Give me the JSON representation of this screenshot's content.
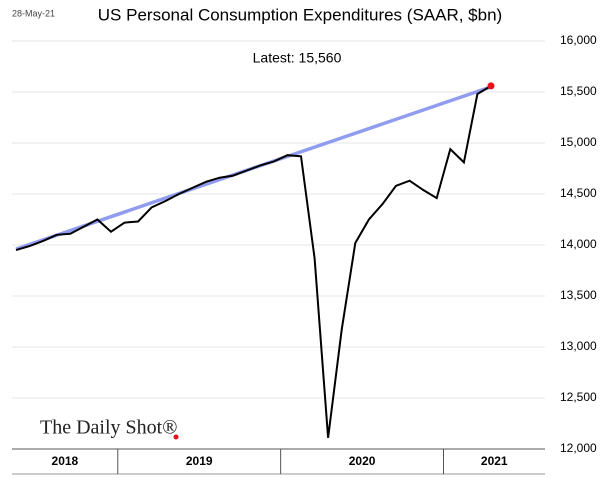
{
  "chart_data": {
    "type": "line",
    "title": "US Personal Consumption Expenditures (SAAR, $bn)",
    "date": "28-May-21",
    "annotation": "Latest:  15,560",
    "watermark": "The Daily Shot®",
    "categories": [
      null,
      null,
      null,
      null,
      null,
      null,
      null,
      null,
      null,
      null,
      null,
      null,
      null,
      null,
      null,
      null,
      null,
      null,
      null,
      null,
      null,
      null,
      null,
      null,
      null,
      null,
      null,
      null,
      null,
      null,
      null,
      null,
      null,
      null,
      null,
      null
    ],
    "x_groups": [
      {
        "label": "2018",
        "count": 8
      },
      {
        "label": "2019",
        "count": 12
      },
      {
        "label": "2020",
        "count": 12
      },
      {
        "label": "2021",
        "count": 4
      }
    ],
    "series": [
      {
        "name": "PCE",
        "color": "#000000",
        "values": [
          13950,
          13990,
          14040,
          14100,
          14110,
          14180,
          14250,
          14130,
          14220,
          14230,
          14370,
          14430,
          14500,
          14560,
          14620,
          14660,
          14680,
          14730,
          14780,
          14820,
          14880,
          14870,
          13870,
          12110,
          13170,
          14020,
          14250,
          14400,
          14580,
          14630,
          14540,
          14460,
          14940,
          14810,
          15480,
          15560
        ]
      },
      {
        "name": "Trend",
        "color": "#8f9cf0",
        "values": [
          13960,
          null,
          null,
          null,
          null,
          null,
          null,
          null,
          null,
          null,
          null,
          null,
          null,
          null,
          null,
          null,
          null,
          null,
          null,
          null,
          null,
          null,
          null,
          null,
          null,
          null,
          null,
          null,
          null,
          null,
          null,
          null,
          null,
          null,
          null,
          15550
        ]
      }
    ],
    "latest_color": "#e8101a",
    "ylim": [
      12000,
      16000
    ],
    "yticks": [
      {
        "value": 12000,
        "label": "12,000"
      },
      {
        "value": 12500,
        "label": "12,500"
      },
      {
        "value": 13000,
        "label": "13,000"
      },
      {
        "value": 13500,
        "label": "13,500"
      },
      {
        "value": 14000,
        "label": "14,000"
      },
      {
        "value": 14500,
        "label": "14,500"
      },
      {
        "value": 15000,
        "label": "15,000"
      },
      {
        "value": 15500,
        "label": "15,500"
      },
      {
        "value": 16000,
        "label": "16,000"
      }
    ],
    "grid": true
  }
}
